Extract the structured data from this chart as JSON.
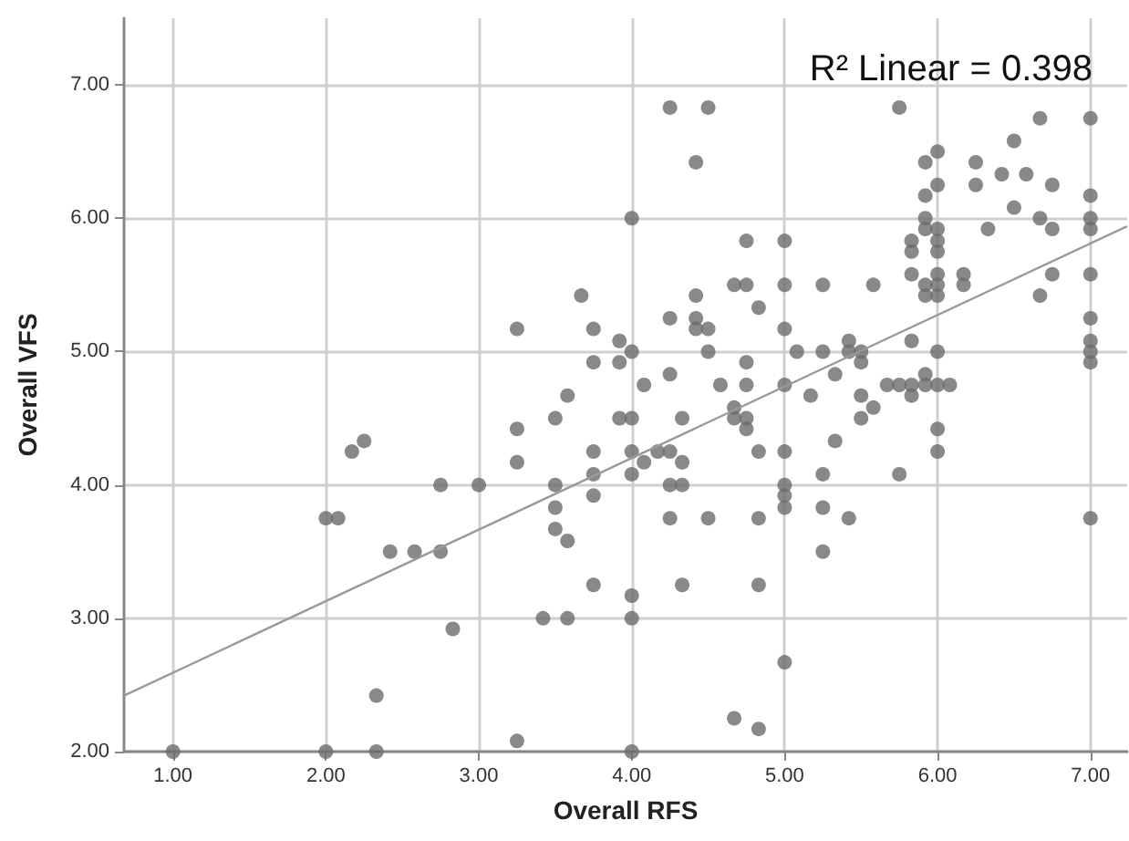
{
  "chart_data": {
    "type": "scatter",
    "xlabel": "Overall RFS",
    "ylabel": "Overall VFS",
    "annotations": [
      "R² Linear = 0.398"
    ],
    "xlim": [
      0.68,
      7.24
    ],
    "ylim": [
      2.0,
      7.5
    ],
    "xticks": [
      {
        "value": 1,
        "label": "1.00"
      },
      {
        "value": 2,
        "label": "2.00"
      },
      {
        "value": 3,
        "label": "3.00"
      },
      {
        "value": 4,
        "label": "4.00"
      },
      {
        "value": 5,
        "label": "5.00"
      },
      {
        "value": 6,
        "label": "6.00"
      },
      {
        "value": 7,
        "label": "7.00"
      }
    ],
    "yticks": [
      {
        "value": 2,
        "label": "2.00"
      },
      {
        "value": 3,
        "label": "3.00"
      },
      {
        "value": 4,
        "label": "4.00"
      },
      {
        "value": 5,
        "label": "5.00"
      },
      {
        "value": 6,
        "label": "6.00"
      },
      {
        "value": 7,
        "label": "7.00"
      }
    ],
    "grid": true,
    "marker": "circle",
    "series": [
      {
        "color": "#6b6b6b",
        "x": [
          1.0,
          2.0,
          2.33,
          2.0,
          2.08,
          2.17,
          2.25,
          2.33,
          2.42,
          2.58,
          2.75,
          2.75,
          2.83,
          3.0,
          3.25,
          3.25,
          3.25,
          3.25,
          3.42,
          3.5,
          3.5,
          3.5,
          3.5,
          3.58,
          3.58,
          3.58,
          3.67,
          3.75,
          3.75,
          3.75,
          3.75,
          3.75,
          3.75,
          3.92,
          3.92,
          3.92,
          4.25,
          4.5,
          4.42,
          5.75,
          4.0,
          5.92,
          6.0,
          6.0,
          5.92,
          5.92,
          5.92,
          6.0,
          6.0,
          5.83,
          5.83,
          6.0,
          5.83,
          5.92,
          6.0,
          6.0,
          5.92,
          6.0,
          6.17,
          6.17,
          6.25,
          6.25,
          6.42,
          6.5,
          6.58,
          6.67,
          6.75,
          6.5,
          6.67,
          6.75,
          6.33,
          6.75,
          6.67,
          7,
          7,
          7,
          7,
          7,
          7,
          7,
          7,
          7,
          4.75,
          5.0,
          4.67,
          4.75,
          5.0,
          5.25,
          5.58,
          4.42,
          4.83,
          4.25,
          4.42,
          4.42,
          4.5,
          5.0,
          4.0,
          4.5,
          5.08,
          5.25,
          5.42,
          5.42,
          5.5,
          5.83,
          6.0,
          4.25,
          4.75,
          5.5,
          5.33,
          5.92,
          4.08,
          4.58,
          4.75,
          5.0,
          5.67,
          5.75,
          5.83,
          5.92,
          6.0,
          6.08,
          5.17,
          5.83,
          5.5,
          5.58,
          4.67,
          4.0,
          4.33,
          4.67,
          4.75,
          4.75,
          5.5,
          6.0,
          5.33,
          4.0,
          4.17,
          4.25,
          4.83,
          5.0,
          6.0,
          4.08,
          4.33,
          4.0,
          5.25,
          5.75,
          4.25,
          4.33,
          5.0,
          5.0,
          5.0,
          5.25,
          4.25,
          4.5,
          4.83,
          5.42,
          7.0,
          5.25,
          4.33,
          4.83,
          4.0,
          4.0,
          5.0,
          4.67,
          4.83,
          4.0
        ],
        "values": [
          2.0,
          2.0,
          2.0,
          3.75,
          3.75,
          4.25,
          4.33,
          2.42,
          3.5,
          3.5,
          3.5,
          4.0,
          2.92,
          4.0,
          2.08,
          4.17,
          4.42,
          5.17,
          3.0,
          3.67,
          3.83,
          4.0,
          4.5,
          3.58,
          3.0,
          4.67,
          5.42,
          3.25,
          3.92,
          4.08,
          4.25,
          4.92,
          5.17,
          4.5,
          4.92,
          5.08,
          6.83,
          6.83,
          6.42,
          6.83,
          6.0,
          6.42,
          6.5,
          6.25,
          6.17,
          6.0,
          5.92,
          5.92,
          5.83,
          5.83,
          5.75,
          5.75,
          5.58,
          5.5,
          5.58,
          5.5,
          5.42,
          5.42,
          5.58,
          5.5,
          6.42,
          6.25,
          6.33,
          6.58,
          6.33,
          6.75,
          6.25,
          6.08,
          6.0,
          5.92,
          5.92,
          5.58,
          5.42,
          6.75,
          6.17,
          6.0,
          5.92,
          5.58,
          5.25,
          5.08,
          5.0,
          4.92,
          5.83,
          5.83,
          5.5,
          5.5,
          5.5,
          5.5,
          5.5,
          5.42,
          5.33,
          5.25,
          5.25,
          5.17,
          5.17,
          5.17,
          5.0,
          5.0,
          5.0,
          5.0,
          5.08,
          5.0,
          5.0,
          5.08,
          5.0,
          4.83,
          4.92,
          4.92,
          4.83,
          4.83,
          4.75,
          4.75,
          4.75,
          4.75,
          4.75,
          4.75,
          4.75,
          4.75,
          4.75,
          4.75,
          4.67,
          4.67,
          4.67,
          4.58,
          4.58,
          4.5,
          4.5,
          4.5,
          4.5,
          4.42,
          4.5,
          4.42,
          4.33,
          4.25,
          4.25,
          4.25,
          4.25,
          4.25,
          4.25,
          4.17,
          4.17,
          4.08,
          4.08,
          4.08,
          4.0,
          4.0,
          4.0,
          3.92,
          3.83,
          3.83,
          3.75,
          3.75,
          3.75,
          3.75,
          3.75,
          3.5,
          3.25,
          3.25,
          3.17,
          3.0,
          2.67,
          2.25,
          2.17,
          2.0
        ]
      },
      {
        "type": "line",
        "color": "#999999",
        "marker": "none",
        "x": [
          0.68,
          7.24
        ],
        "values": [
          2.42,
          5.94
        ]
      }
    ]
  }
}
